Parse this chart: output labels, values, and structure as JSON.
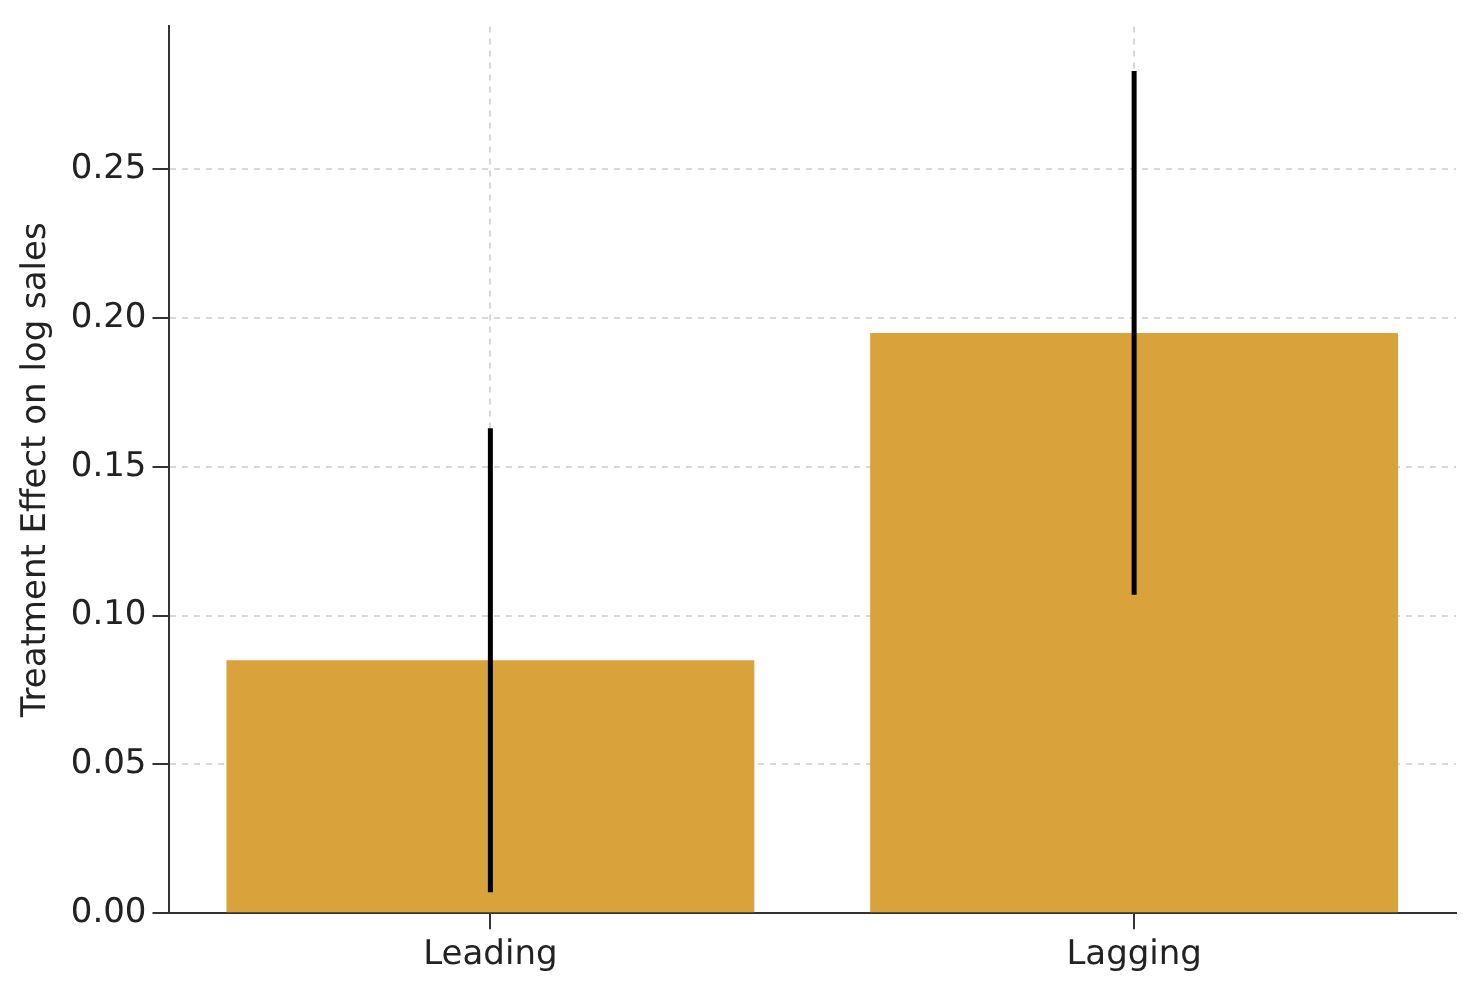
{
  "chart_data": {
    "type": "bar",
    "ylabel": "Treatment Effect on log sales",
    "categories": [
      "Leading",
      "Lagging"
    ],
    "values": [
      0.085,
      0.195
    ],
    "errors": [
      0.078,
      0.088
    ],
    "color": "#d9a23a",
    "ylim": [
      0,
      0.298
    ],
    "yticks": [
      {
        "value": 0,
        "label": "0.00"
      },
      {
        "value": 0.05,
        "label": "0.05"
      },
      {
        "value": 0.1,
        "label": "0.10"
      },
      {
        "value": 0.15,
        "label": "0.15"
      },
      {
        "value": 0.2,
        "label": "0.20"
      },
      {
        "value": 0.25,
        "label": "0.25"
      }
    ],
    "grid": true
  }
}
